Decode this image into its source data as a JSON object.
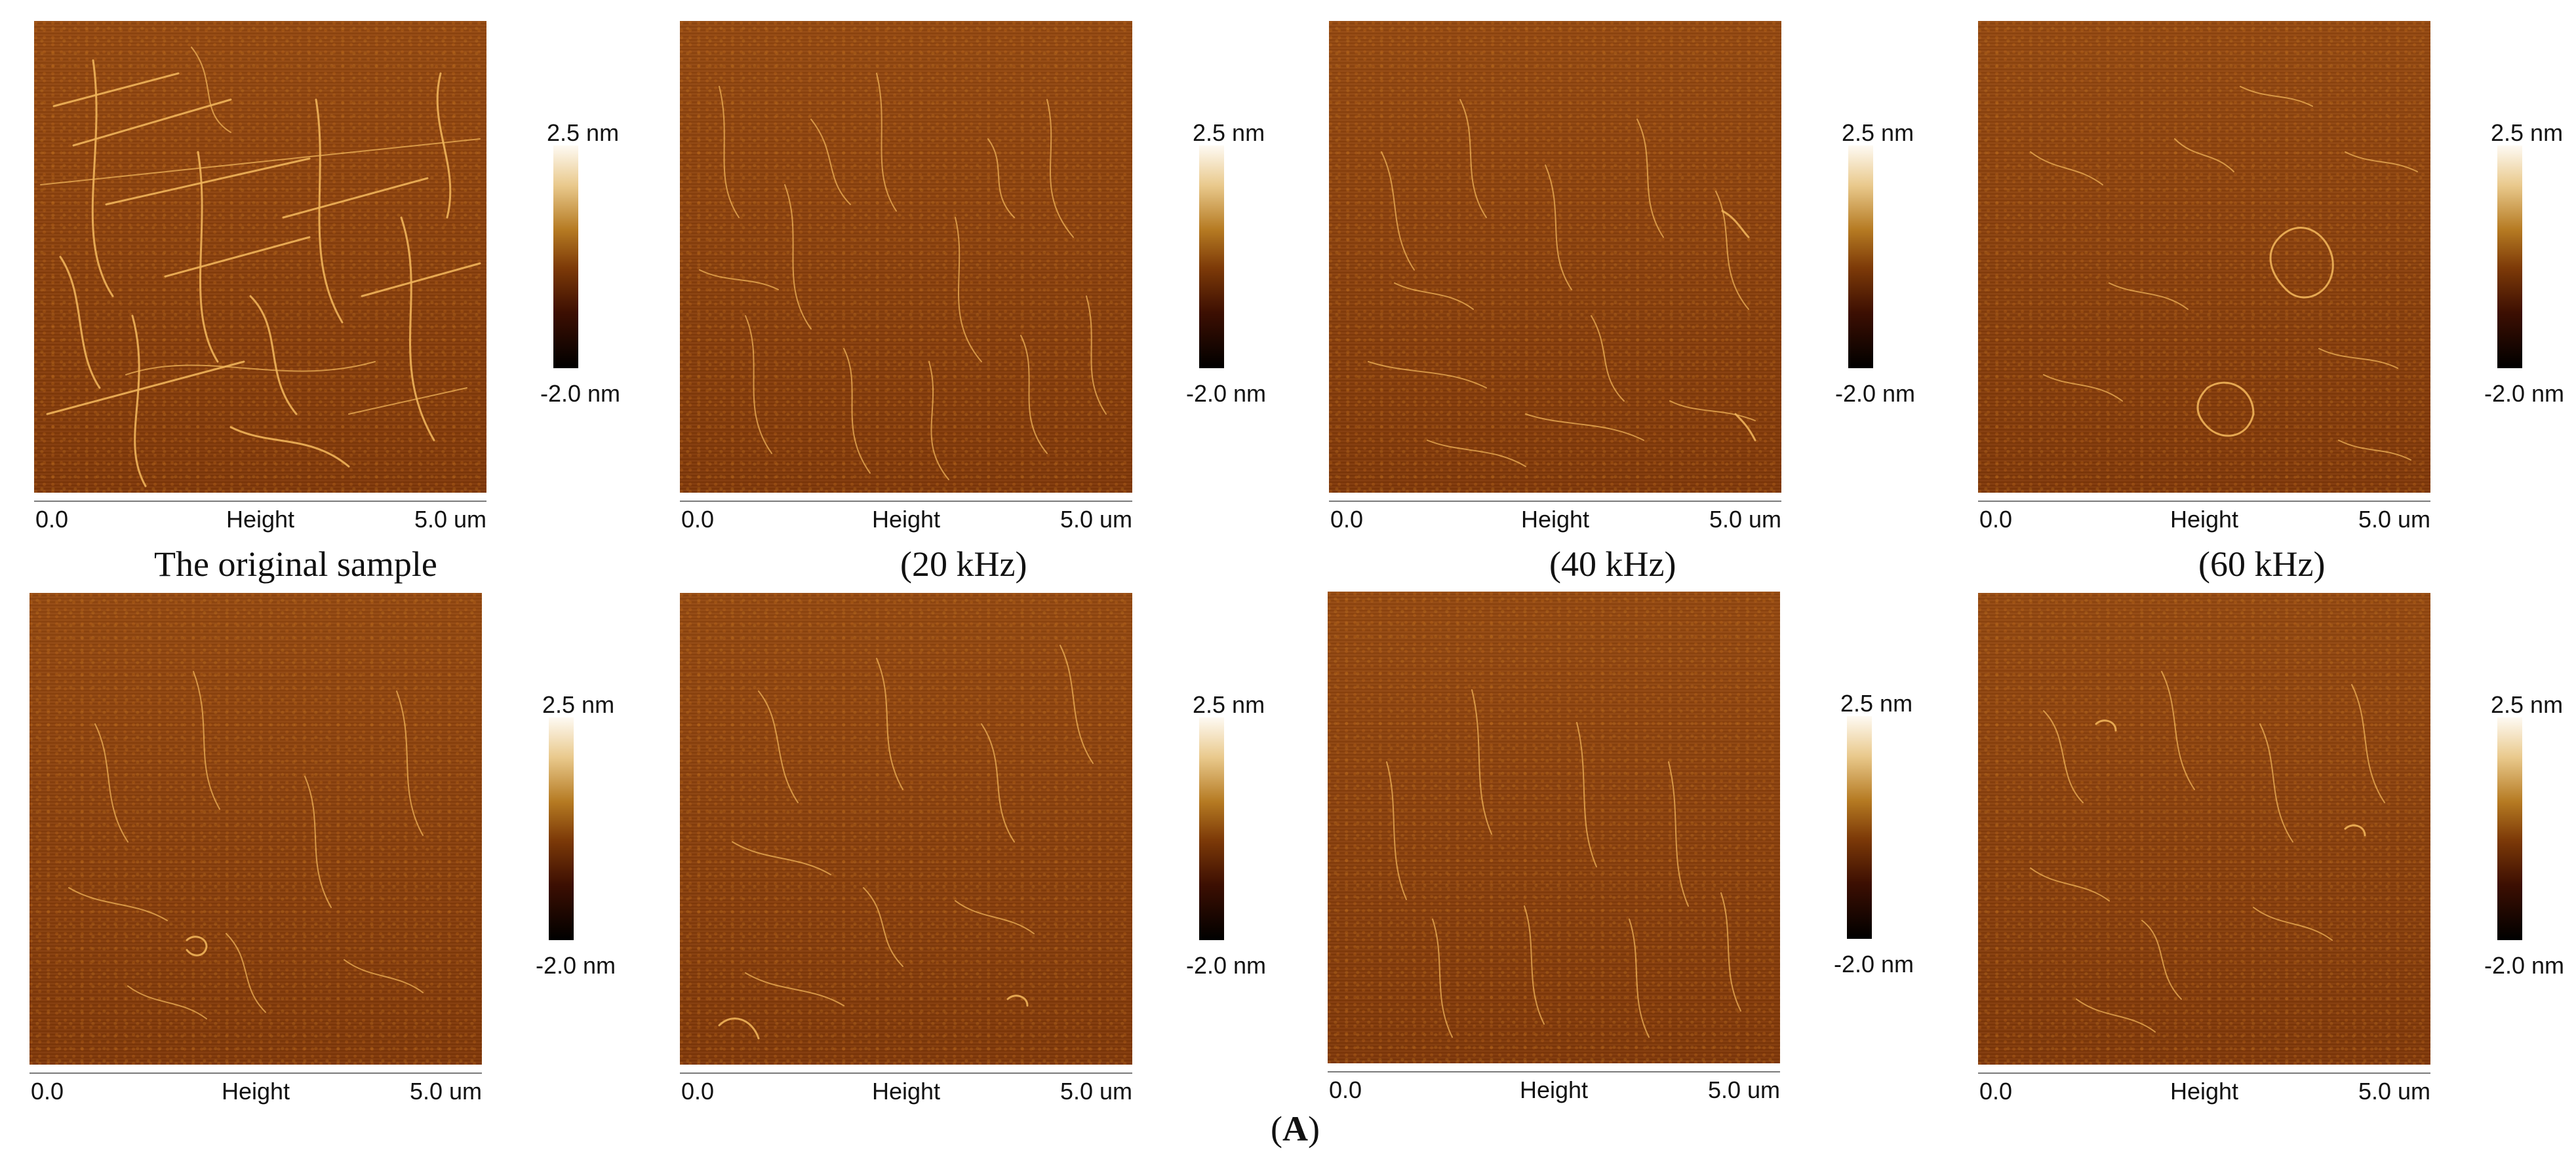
{
  "figure": {
    "label_open": "(",
    "label_letter": "A",
    "label_close": ")"
  },
  "colorbar": {
    "max": "2.5 nm",
    "min": "-2.0 nm"
  },
  "axis": {
    "start": "0.0",
    "center": "Height",
    "end": "5.0 um"
  },
  "row1_captions": [
    "The original sample",
    "(20 kHz)",
    "(40 kHz)",
    "(60 kHz)"
  ]
}
